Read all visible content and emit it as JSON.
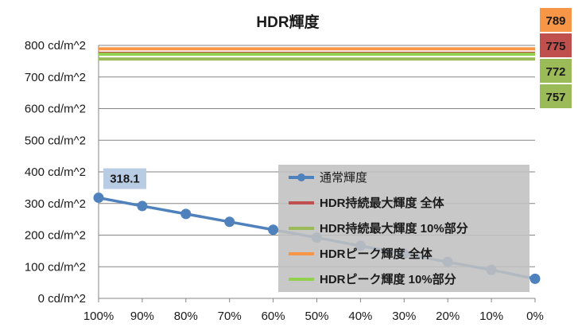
{
  "chart_data": {
    "type": "line",
    "title": "HDR輝度",
    "xlabel": "",
    "ylabel": "",
    "x": [
      "100%",
      "90%",
      "80%",
      "70%",
      "60%",
      "50%",
      "40%",
      "30%",
      "20%",
      "10%",
      "0%"
    ],
    "y_ticks": [
      "0 cd/m^2",
      "100 cd/m^2",
      "200 cd/m^2",
      "300 cd/m^2",
      "400 cd/m^2",
      "500 cd/m^2",
      "600 cd/m^2",
      "700 cd/m^2",
      "800 cd/m^2"
    ],
    "ylim": [
      0,
      800
    ],
    "grid": true,
    "legend_position": "right-inside",
    "legend_background": "#c0c0c0",
    "series": [
      {
        "name": "通常輝度",
        "color": "#4f81bd",
        "marker": "circle",
        "values": [
          318.1,
          292,
          267,
          242,
          217,
          192,
          166,
          141,
          115,
          90,
          62
        ],
        "data_labels": [
          {
            "index": 0,
            "text": "318.1",
            "background": "#b8cce4"
          }
        ]
      },
      {
        "name": "HDR持続最大輝度 全体",
        "color": "#c0504d",
        "marker": "none",
        "values": [
          775,
          775,
          775,
          775,
          775,
          775,
          775,
          775,
          775,
          775,
          775
        ],
        "end_label": {
          "text": "775",
          "background": "#c0504d"
        }
      },
      {
        "name": "HDR持続最大輝度 10%部分",
        "color": "#9bbb59",
        "marker": "none",
        "values": [
          757,
          757,
          757,
          757,
          757,
          757,
          757,
          757,
          757,
          757,
          757
        ],
        "end_label": {
          "text": "757",
          "background": "#9bbb59"
        }
      },
      {
        "name": "HDRピーク輝度 全体",
        "color": "#f79646",
        "marker": "none",
        "values": [
          789,
          789,
          789,
          789,
          789,
          789,
          789,
          789,
          789,
          789,
          789
        ],
        "end_label": {
          "text": "789",
          "background": "#f79646"
        }
      },
      {
        "name": "HDRピーク輝度 10%部分",
        "color": "#92d050",
        "marker": "none",
        "values": [
          772,
          772,
          772,
          772,
          772,
          772,
          772,
          772,
          772,
          772,
          772
        ],
        "end_label": {
          "text": "772",
          "background": "#9bbb59"
        }
      }
    ]
  }
}
